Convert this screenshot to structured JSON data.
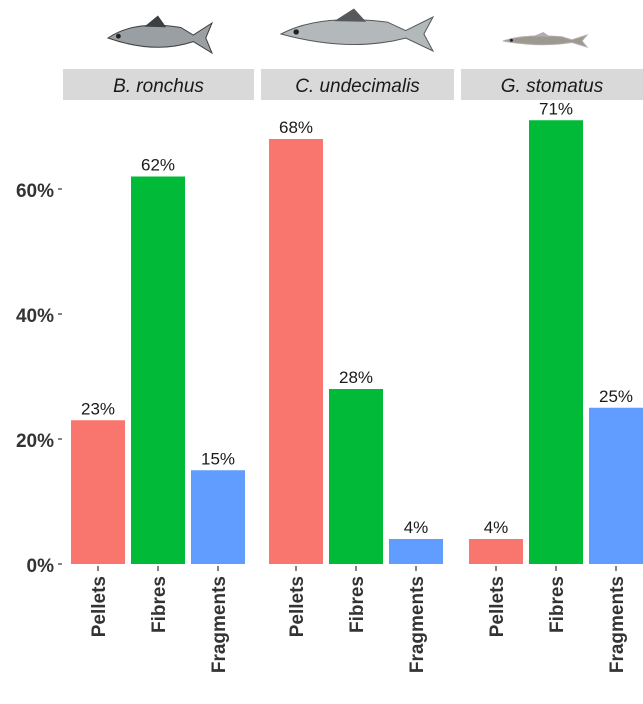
{
  "chart_data": {
    "type": "bar",
    "facets": [
      "B. ronchus",
      "C. undecimalis",
      "G. stomatus"
    ],
    "categories": [
      "Pellets",
      "Fibres",
      "Fragments"
    ],
    "category_colors": [
      "#F8766D",
      "#00BA38",
      "#619CFF"
    ],
    "values": [
      [
        23,
        62,
        15
      ],
      [
        68,
        28,
        4
      ],
      [
        4,
        71,
        25
      ]
    ],
    "data_labels": [
      [
        "23%",
        "62%",
        "15%"
      ],
      [
        "68%",
        "28%",
        "4%"
      ],
      [
        "4%",
        "71%",
        "25%"
      ]
    ],
    "y_ticks": [
      "0%",
      "20%",
      "40%",
      "60%"
    ],
    "y_tick_values": [
      0,
      20,
      40,
      60
    ],
    "ylim": [
      0,
      71
    ],
    "grid": false,
    "legend": "none",
    "facet_strip_color": "#D9D9D9",
    "facet_icons": [
      "fish-icon",
      "fish-icon",
      "fish-icon"
    ]
  }
}
